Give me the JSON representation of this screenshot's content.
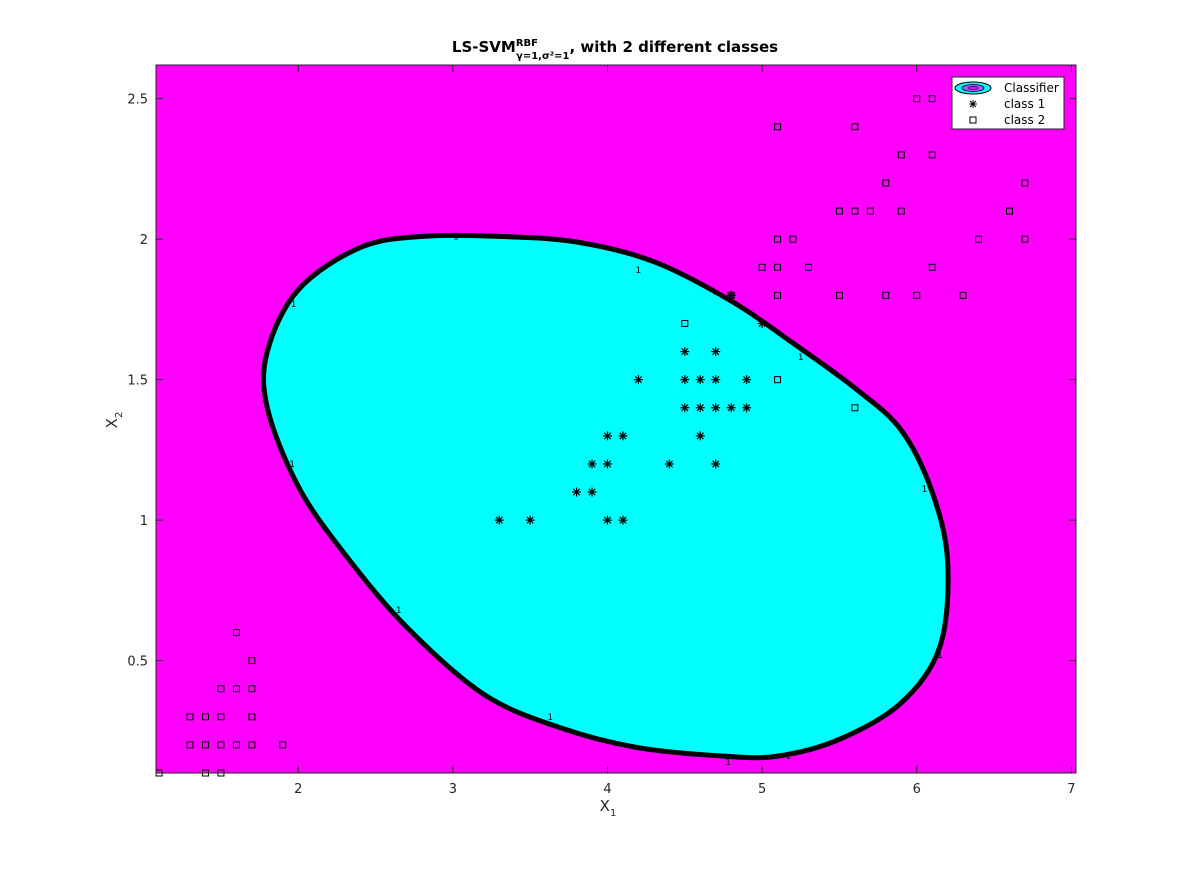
{
  "chart_data": {
    "type": "scatter",
    "title": "LS-SVM",
    "title_superscript": "RBF",
    "title_subscript": "γ=1,σ²=1",
    "title_suffix": ", with 2 different classes",
    "xlabel": "X",
    "xlabel_subscript": "1",
    "ylabel": "X",
    "ylabel_subscript": "2",
    "xlim": [
      1.08,
      7.03
    ],
    "ylim": [
      0.1,
      2.62
    ],
    "xticks": [
      2,
      3,
      4,
      5,
      6,
      7
    ],
    "xtick_labels": [
      "2",
      "3",
      "4",
      "5",
      "6",
      "7"
    ],
    "yticks": [
      0.5,
      1,
      1.5,
      2,
      2.5
    ],
    "ytick_labels": [
      "0.5",
      "1",
      "1.5",
      "2",
      "2.5"
    ],
    "legend": [
      "Classifier",
      "class 1",
      "class 2"
    ],
    "legend_position": "top-right",
    "colors": {
      "background_class": "#ff00ff",
      "region_class": "#00ffff",
      "boundary": "#000000"
    },
    "decision_region": {
      "label": "Classifier",
      "boundary_points": [
        [
          4.75,
          0.16
        ],
        [
          5.1,
          0.16
        ],
        [
          5.5,
          0.22
        ],
        [
          5.9,
          0.35
        ],
        [
          6.15,
          0.55
        ],
        [
          6.2,
          0.85
        ],
        [
          6.1,
          1.1
        ],
        [
          5.9,
          1.32
        ],
        [
          5.6,
          1.47
        ],
        [
          5.2,
          1.63
        ],
        [
          4.8,
          1.78
        ],
        [
          4.3,
          1.92
        ],
        [
          3.8,
          1.99
        ],
        [
          3.3,
          2.01
        ],
        [
          2.8,
          2.01
        ],
        [
          2.4,
          1.97
        ],
        [
          2.0,
          1.82
        ],
        [
          1.8,
          1.6
        ],
        [
          1.8,
          1.4
        ],
        [
          2.0,
          1.12
        ],
        [
          2.3,
          0.88
        ],
        [
          2.7,
          0.62
        ],
        [
          3.2,
          0.38
        ],
        [
          3.7,
          0.26
        ],
        [
          4.2,
          0.19
        ]
      ],
      "contour_labels": [
        {
          "x": 3.02,
          "y": 2.01,
          "text": "1"
        },
        {
          "x": 4.2,
          "y": 1.89,
          "text": "1"
        },
        {
          "x": 1.97,
          "y": 1.77,
          "text": "1"
        },
        {
          "x": 5.25,
          "y": 1.58,
          "text": "1"
        },
        {
          "x": 1.96,
          "y": 1.2,
          "text": "1"
        },
        {
          "x": 6.05,
          "y": 1.11,
          "text": "1"
        },
        {
          "x": 2.65,
          "y": 0.68,
          "text": "1"
        },
        {
          "x": 6.15,
          "y": 0.52,
          "text": "1"
        },
        {
          "x": 3.63,
          "y": 0.3,
          "text": "1"
        },
        {
          "x": 4.78,
          "y": 0.14,
          "text": "1"
        },
        {
          "x": 5.17,
          "y": 0.16,
          "text": "1"
        }
      ]
    },
    "series": [
      {
        "name": "class 1",
        "marker": "asterisk",
        "points": [
          [
            3.3,
            1.0
          ],
          [
            3.5,
            1.0
          ],
          [
            3.8,
            1.1
          ],
          [
            3.9,
            1.1
          ],
          [
            3.9,
            1.2
          ],
          [
            4.0,
            1.2
          ],
          [
            4.0,
            1.0
          ],
          [
            4.1,
            1.0
          ],
          [
            4.0,
            1.3
          ],
          [
            4.1,
            1.3
          ],
          [
            4.2,
            1.5
          ],
          [
            4.4,
            1.2
          ],
          [
            4.5,
            1.6
          ],
          [
            4.5,
            1.5
          ],
          [
            4.5,
            1.4
          ],
          [
            4.6,
            1.5
          ],
          [
            4.6,
            1.4
          ],
          [
            4.6,
            1.3
          ],
          [
            4.7,
            1.6
          ],
          [
            4.7,
            1.5
          ],
          [
            4.7,
            1.4
          ],
          [
            4.7,
            1.2
          ],
          [
            4.8,
            1.4
          ],
          [
            4.8,
            1.8
          ],
          [
            4.9,
            1.5
          ],
          [
            4.9,
            1.4
          ],
          [
            5.0,
            1.7
          ]
        ]
      },
      {
        "name": "class 2",
        "marker": "square",
        "points": [
          [
            1.1,
            0.1
          ],
          [
            1.3,
            0.3
          ],
          [
            1.3,
            0.2
          ],
          [
            1.4,
            0.3
          ],
          [
            1.4,
            0.2
          ],
          [
            1.4,
            0.1
          ],
          [
            1.5,
            0.4
          ],
          [
            1.5,
            0.3
          ],
          [
            1.5,
            0.2
          ],
          [
            1.5,
            0.1
          ],
          [
            1.6,
            0.6
          ],
          [
            1.6,
            0.4
          ],
          [
            1.6,
            0.2
          ],
          [
            1.7,
            0.5
          ],
          [
            1.7,
            0.4
          ],
          [
            1.7,
            0.3
          ],
          [
            1.7,
            0.2
          ],
          [
            1.9,
            0.2
          ],
          [
            4.5,
            1.7
          ],
          [
            4.8,
            1.8
          ],
          [
            5.0,
            1.9
          ],
          [
            5.1,
            2.4
          ],
          [
            5.1,
            2.0
          ],
          [
            5.1,
            1.9
          ],
          [
            5.1,
            1.8
          ],
          [
            5.1,
            1.5
          ],
          [
            5.2,
            2.0
          ],
          [
            5.3,
            1.9
          ],
          [
            5.5,
            2.1
          ],
          [
            5.5,
            1.8
          ],
          [
            5.6,
            2.4
          ],
          [
            5.6,
            2.1
          ],
          [
            5.6,
            1.4
          ],
          [
            5.7,
            2.1
          ],
          [
            5.8,
            2.2
          ],
          [
            5.8,
            1.8
          ],
          [
            5.9,
            2.3
          ],
          [
            5.9,
            2.1
          ],
          [
            6.0,
            2.5
          ],
          [
            6.0,
            1.8
          ],
          [
            6.1,
            2.5
          ],
          [
            6.1,
            2.3
          ],
          [
            6.1,
            1.9
          ],
          [
            6.3,
            1.8
          ],
          [
            6.4,
            2.0
          ],
          [
            6.6,
            2.1
          ],
          [
            6.7,
            2.2
          ],
          [
            6.7,
            2.0
          ]
        ]
      }
    ]
  }
}
